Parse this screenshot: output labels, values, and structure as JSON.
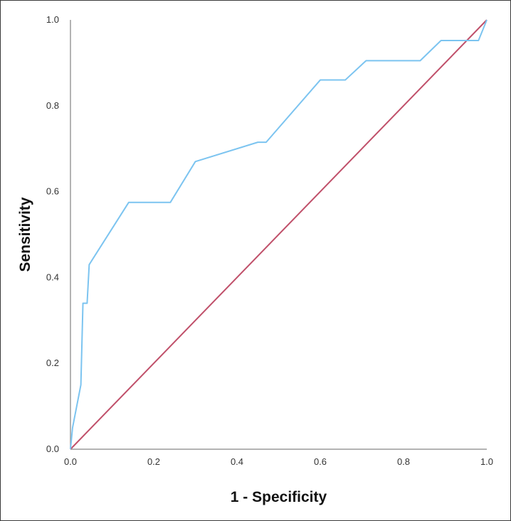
{
  "chart_data": {
    "type": "line",
    "title": "",
    "xlabel": "1 - Specificity",
    "ylabel": "Sensitivity",
    "xlim": [
      0.0,
      1.0
    ],
    "ylim": [
      0.0,
      1.0
    ],
    "x_ticks": [
      "0.0",
      "0.2",
      "0.4",
      "0.6",
      "0.8",
      "1.0"
    ],
    "y_ticks": [
      "0.0",
      "0.2",
      "0.4",
      "0.6",
      "0.8",
      "1.0"
    ],
    "grid": false,
    "legend": "none",
    "series": [
      {
        "color": "#7cc4f0",
        "x": [
          0.0,
          0.005,
          0.025,
          0.03,
          0.03,
          0.04,
          0.045,
          0.14,
          0.24,
          0.3,
          0.45,
          0.47,
          0.6,
          0.66,
          0.71,
          0.84,
          0.89,
          0.98,
          1.0
        ],
        "y": [
          0.0,
          0.05,
          0.15,
          0.34,
          0.34,
          0.34,
          0.43,
          0.575,
          0.575,
          0.67,
          0.715,
          0.715,
          0.86,
          0.86,
          0.905,
          0.905,
          0.952,
          0.952,
          1.0
        ]
      },
      {
        "color": "#c0506a",
        "x": [
          0.0,
          1.0
        ],
        "y": [
          0.0,
          1.0
        ]
      }
    ]
  }
}
